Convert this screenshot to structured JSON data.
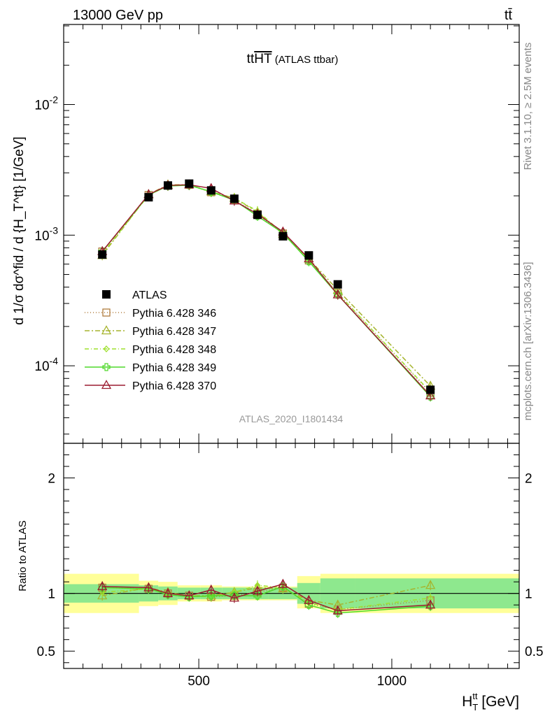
{
  "header": {
    "left": "13000 GeV pp",
    "right": "tt̄"
  },
  "side_labels": {
    "rivet": "Rivet 3.1.10, ≥ 2.5M events",
    "mcplots": "mcplots.cern.ch [arXiv:1306.3436]"
  },
  "analysis_id": "ATLAS_2020_I1801434",
  "chart_data": [
    {
      "type": "line",
      "title": "ttHT (ATLAS ttbar)",
      "title_main": "tt",
      "title_over": "HT",
      "title_suffix": " (ATLAS ttbar)",
      "ylabel": "d 1/σ dσ^fid / d {H_T^tt} [1/GeV]",
      "xlabel": "H_T^tt [GeV]",
      "y_scale": "log",
      "xlim": [
        150,
        1330
      ],
      "ylim": [
        2.55e-05,
        0.041
      ],
      "x_ticks": [
        500,
        1000
      ],
      "x_tick_labels": [
        "500",
        "1000"
      ],
      "y_ticks": [
        0.0001,
        0.001,
        0.01
      ],
      "y_tick_labels": [
        "10^-4",
        "10^-3",
        "10^-2"
      ],
      "legend_position": "middle-left",
      "legend": [
        "ATLAS",
        "Pythia 6.428 346",
        "Pythia 6.428 347",
        "Pythia 6.428 348",
        "Pythia 6.428 349",
        "Pythia 6.428 370"
      ],
      "x": [
        250,
        370,
        420,
        475,
        532,
        592,
        652,
        718,
        785,
        860,
        1100
      ],
      "x_bins": [
        [
          150,
          345
        ],
        [
          345,
          395
        ],
        [
          395,
          445
        ],
        [
          445,
          505
        ],
        [
          505,
          560
        ],
        [
          560,
          625
        ],
        [
          625,
          680
        ],
        [
          680,
          755
        ],
        [
          755,
          815
        ],
        [
          815,
          905
        ],
        [
          905,
          1330
        ]
      ],
      "series": [
        {
          "name": "ATLAS",
          "color": "#000000",
          "marker": "square-filled",
          "dash": "",
          "values": [
            0.00071,
            0.00195,
            0.0024,
            0.00248,
            0.0022,
            0.0019,
            0.00143,
            0.00098,
            0.0007,
            0.00042,
            6.55e-05
          ]
        },
        {
          "name": "Pythia 6.428 346",
          "color": "#b07d3e",
          "marker": "square-open",
          "dash": "1,3",
          "values": [
            0.00075,
            0.00203,
            0.0024,
            0.00243,
            0.00213,
            0.00187,
            0.00145,
            0.00103,
            0.00064,
            0.00036,
            6.2e-05
          ]
        },
        {
          "name": "Pythia 6.428 347",
          "color": "#a6b42e",
          "marker": "triangle-open",
          "dash": "7,3,2,3",
          "values": [
            0.0007,
            0.00205,
            0.00243,
            0.00243,
            0.00215,
            0.00192,
            0.0015,
            0.00102,
            0.00066,
            0.00038,
            7e-05
          ]
        },
        {
          "name": "Pythia 6.428 348",
          "color": "#9ee02e",
          "marker": "diamond-open",
          "dash": "6,3,1,3",
          "values": [
            0.00072,
            0.00202,
            0.0024,
            0.00243,
            0.00213,
            0.00192,
            0.00153,
            0.00103,
            0.00064,
            0.00036,
            6.3e-05
          ]
        },
        {
          "name": "Pythia 6.428 349",
          "color": "#4fd82a",
          "marker": "cross-open",
          "dash": "",
          "values": [
            0.00075,
            0.00203,
            0.00238,
            0.00241,
            0.00215,
            0.00185,
            0.0014,
            0.00104,
            0.00063,
            0.00035,
            5.8e-05
          ]
        },
        {
          "name": "Pythia 6.428 370",
          "color": "#9b1c30",
          "marker": "triangle-open",
          "dash": "",
          "values": [
            0.00075,
            0.00205,
            0.0024,
            0.00243,
            0.00228,
            0.00183,
            0.00145,
            0.00106,
            0.00066,
            0.00035,
            5.9e-05
          ]
        }
      ]
    },
    {
      "type": "line",
      "title": "",
      "ylabel": "Ratio to ATLAS",
      "xlabel": "H_T^tt [GeV]",
      "y_scale": "linear",
      "xlim": [
        150,
        1330
      ],
      "ylim": [
        0.35,
        2.3
      ],
      "y_ticks": [
        0.5,
        1,
        2
      ],
      "y_tick_labels": [
        "0.5",
        "1",
        "2"
      ],
      "x": [
        250,
        370,
        420,
        475,
        532,
        592,
        652,
        718,
        785,
        860,
        1100
      ],
      "x_bins": [
        [
          150,
          345
        ],
        [
          345,
          395
        ],
        [
          395,
          445
        ],
        [
          445,
          505
        ],
        [
          505,
          560
        ],
        [
          560,
          625
        ],
        [
          625,
          680
        ],
        [
          680,
          755
        ],
        [
          755,
          815
        ],
        [
          815,
          905
        ],
        [
          905,
          1330
        ]
      ],
      "band_inner": {
        "color": "#8ee88e",
        "lower": [
          0.92,
          0.93,
          0.94,
          0.95,
          0.95,
          0.95,
          0.95,
          0.95,
          0.91,
          0.87,
          0.87
        ],
        "upper": [
          1.08,
          1.07,
          1.06,
          1.05,
          1.05,
          1.05,
          1.05,
          1.05,
          1.09,
          1.13,
          1.13
        ]
      },
      "band_outer": {
        "color": "#ffff99",
        "lower": [
          0.83,
          0.89,
          0.9,
          0.93,
          0.93,
          0.94,
          0.94,
          0.94,
          0.87,
          0.83,
          0.83
        ],
        "upper": [
          1.17,
          1.11,
          1.1,
          1.07,
          1.07,
          1.06,
          1.06,
          1.06,
          1.15,
          1.17,
          1.17
        ]
      },
      "series": [
        {
          "name": "Pythia 6.428 346",
          "color": "#b07d3e",
          "marker": "square-open",
          "dash": "1,3",
          "values": [
            1.05,
            1.04,
            1.0,
            0.98,
            0.97,
            0.98,
            1.01,
            1.05,
            0.91,
            0.86,
            0.94
          ]
        },
        {
          "name": "Pythia 6.428 347",
          "color": "#a6b42e",
          "marker": "triangle-open",
          "dash": "7,3,2,3",
          "values": [
            0.98,
            1.05,
            1.01,
            0.98,
            0.98,
            1.01,
            1.05,
            1.04,
            0.94,
            0.9,
            1.07
          ]
        },
        {
          "name": "Pythia 6.428 348",
          "color": "#9ee02e",
          "marker": "diamond-open",
          "dash": "6,3,1,3",
          "values": [
            1.01,
            1.04,
            1.0,
            0.98,
            0.97,
            1.01,
            1.07,
            1.05,
            0.92,
            0.86,
            0.96
          ]
        },
        {
          "name": "Pythia 6.428 349",
          "color": "#4fd82a",
          "marker": "cross-open",
          "dash": "",
          "values": [
            1.05,
            1.04,
            0.99,
            0.97,
            0.98,
            0.98,
            0.98,
            1.06,
            0.9,
            0.83,
            0.89
          ]
        },
        {
          "name": "Pythia 6.428 370",
          "color": "#9b1c30",
          "marker": "triangle-open",
          "dash": "",
          "values": [
            1.06,
            1.05,
            1.0,
            0.98,
            1.03,
            0.96,
            1.02,
            1.08,
            0.94,
            0.85,
            0.9
          ]
        }
      ]
    }
  ]
}
